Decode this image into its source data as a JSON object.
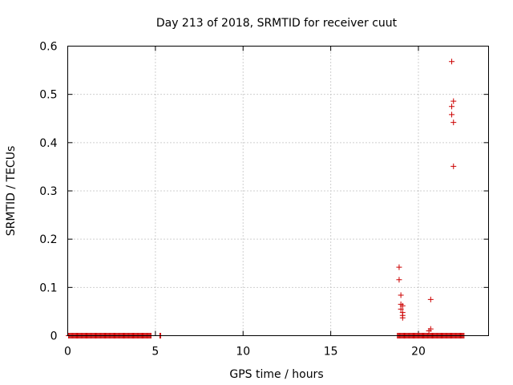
{
  "chart_data": {
    "type": "scatter",
    "title": "Day 213 of 2018, SRMTID for receiver cuut",
    "xlabel": "GPS time / hours",
    "ylabel": "SRMTID / TECUs",
    "xlim": [
      0,
      24
    ],
    "ylim": [
      0,
      0.6
    ],
    "xticks": [
      0,
      5,
      10,
      15,
      20
    ],
    "yticks": [
      0,
      0.1,
      0.2,
      0.3,
      0.4,
      0.5,
      0.6
    ],
    "xtick_labels": [
      "0",
      "5",
      "10",
      "15",
      "20"
    ],
    "ytick_labels": [
      "0",
      "0.1",
      "0.2",
      "0.3",
      "0.4",
      "0.5",
      "0.6"
    ],
    "grid": true,
    "marker": "+",
    "color": "#cc0000",
    "series": [
      {
        "name": "SRMTID",
        "zero_ranges": [
          [
            0.05,
            4.75
          ],
          [
            5.25,
            5.3
          ],
          [
            18.8,
            22.6
          ]
        ],
        "points": [
          {
            "x": 18.9,
            "y": 0.142
          },
          {
            "x": 18.9,
            "y": 0.116
          },
          {
            "x": 19.0,
            "y": 0.084
          },
          {
            "x": 19.0,
            "y": 0.065
          },
          {
            "x": 19.1,
            "y": 0.062
          },
          {
            "x": 19.0,
            "y": 0.055
          },
          {
            "x": 19.1,
            "y": 0.048
          },
          {
            "x": 19.1,
            "y": 0.042
          },
          {
            "x": 19.1,
            "y": 0.037
          },
          {
            "x": 20.7,
            "y": 0.075
          },
          {
            "x": 20.7,
            "y": 0.014
          },
          {
            "x": 20.6,
            "y": 0.01
          },
          {
            "x": 21.9,
            "y": 0.568
          },
          {
            "x": 22.0,
            "y": 0.486
          },
          {
            "x": 21.9,
            "y": 0.475
          },
          {
            "x": 21.9,
            "y": 0.458
          },
          {
            "x": 22.0,
            "y": 0.442
          },
          {
            "x": 22.0,
            "y": 0.351
          }
        ]
      }
    ]
  }
}
